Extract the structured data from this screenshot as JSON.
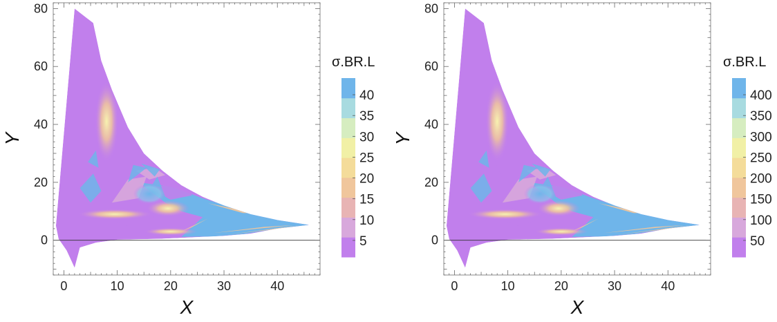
{
  "chart_data": [
    {
      "type": "heatmap",
      "xlabel": "X",
      "ylabel": "Y",
      "xlim": [
        -2,
        48
      ],
      "ylim": [
        -12,
        82
      ],
      "xticks": [
        0,
        10,
        20,
        30,
        40
      ],
      "yticks": [
        0,
        20,
        40,
        60,
        80
      ],
      "legend": {
        "title": "σ.BR.L",
        "placement": "right",
        "ticks": [
          5,
          10,
          15,
          20,
          25,
          30,
          35,
          40
        ],
        "range": [
          1,
          44
        ]
      },
      "colors": [
        "#c17fec",
        "#d8a8dc",
        "#e8b4b4",
        "#f0c69c",
        "#f4dc9a",
        "#f1f0a6",
        "#d6edc0",
        "#a8dbe0",
        "#6fb5ea"
      ]
    },
    {
      "type": "heatmap",
      "xlabel": "X",
      "ylabel": "Y",
      "xlim": [
        -2,
        48
      ],
      "ylim": [
        -12,
        82
      ],
      "xticks": [
        0,
        10,
        20,
        30,
        40
      ],
      "yticks": [
        0,
        20,
        40,
        60,
        80
      ],
      "legend": {
        "title": "σ.BR.L",
        "placement": "right",
        "ticks": [
          50,
          100,
          150,
          200,
          250,
          300,
          350,
          400
        ],
        "range": [
          10,
          440
        ]
      },
      "colors": [
        "#c17fec",
        "#d8a8dc",
        "#e8b4b4",
        "#f0c69c",
        "#f4dc9a",
        "#f1f0a6",
        "#d6edc0",
        "#a8dbe0",
        "#6fb5ea"
      ]
    }
  ]
}
